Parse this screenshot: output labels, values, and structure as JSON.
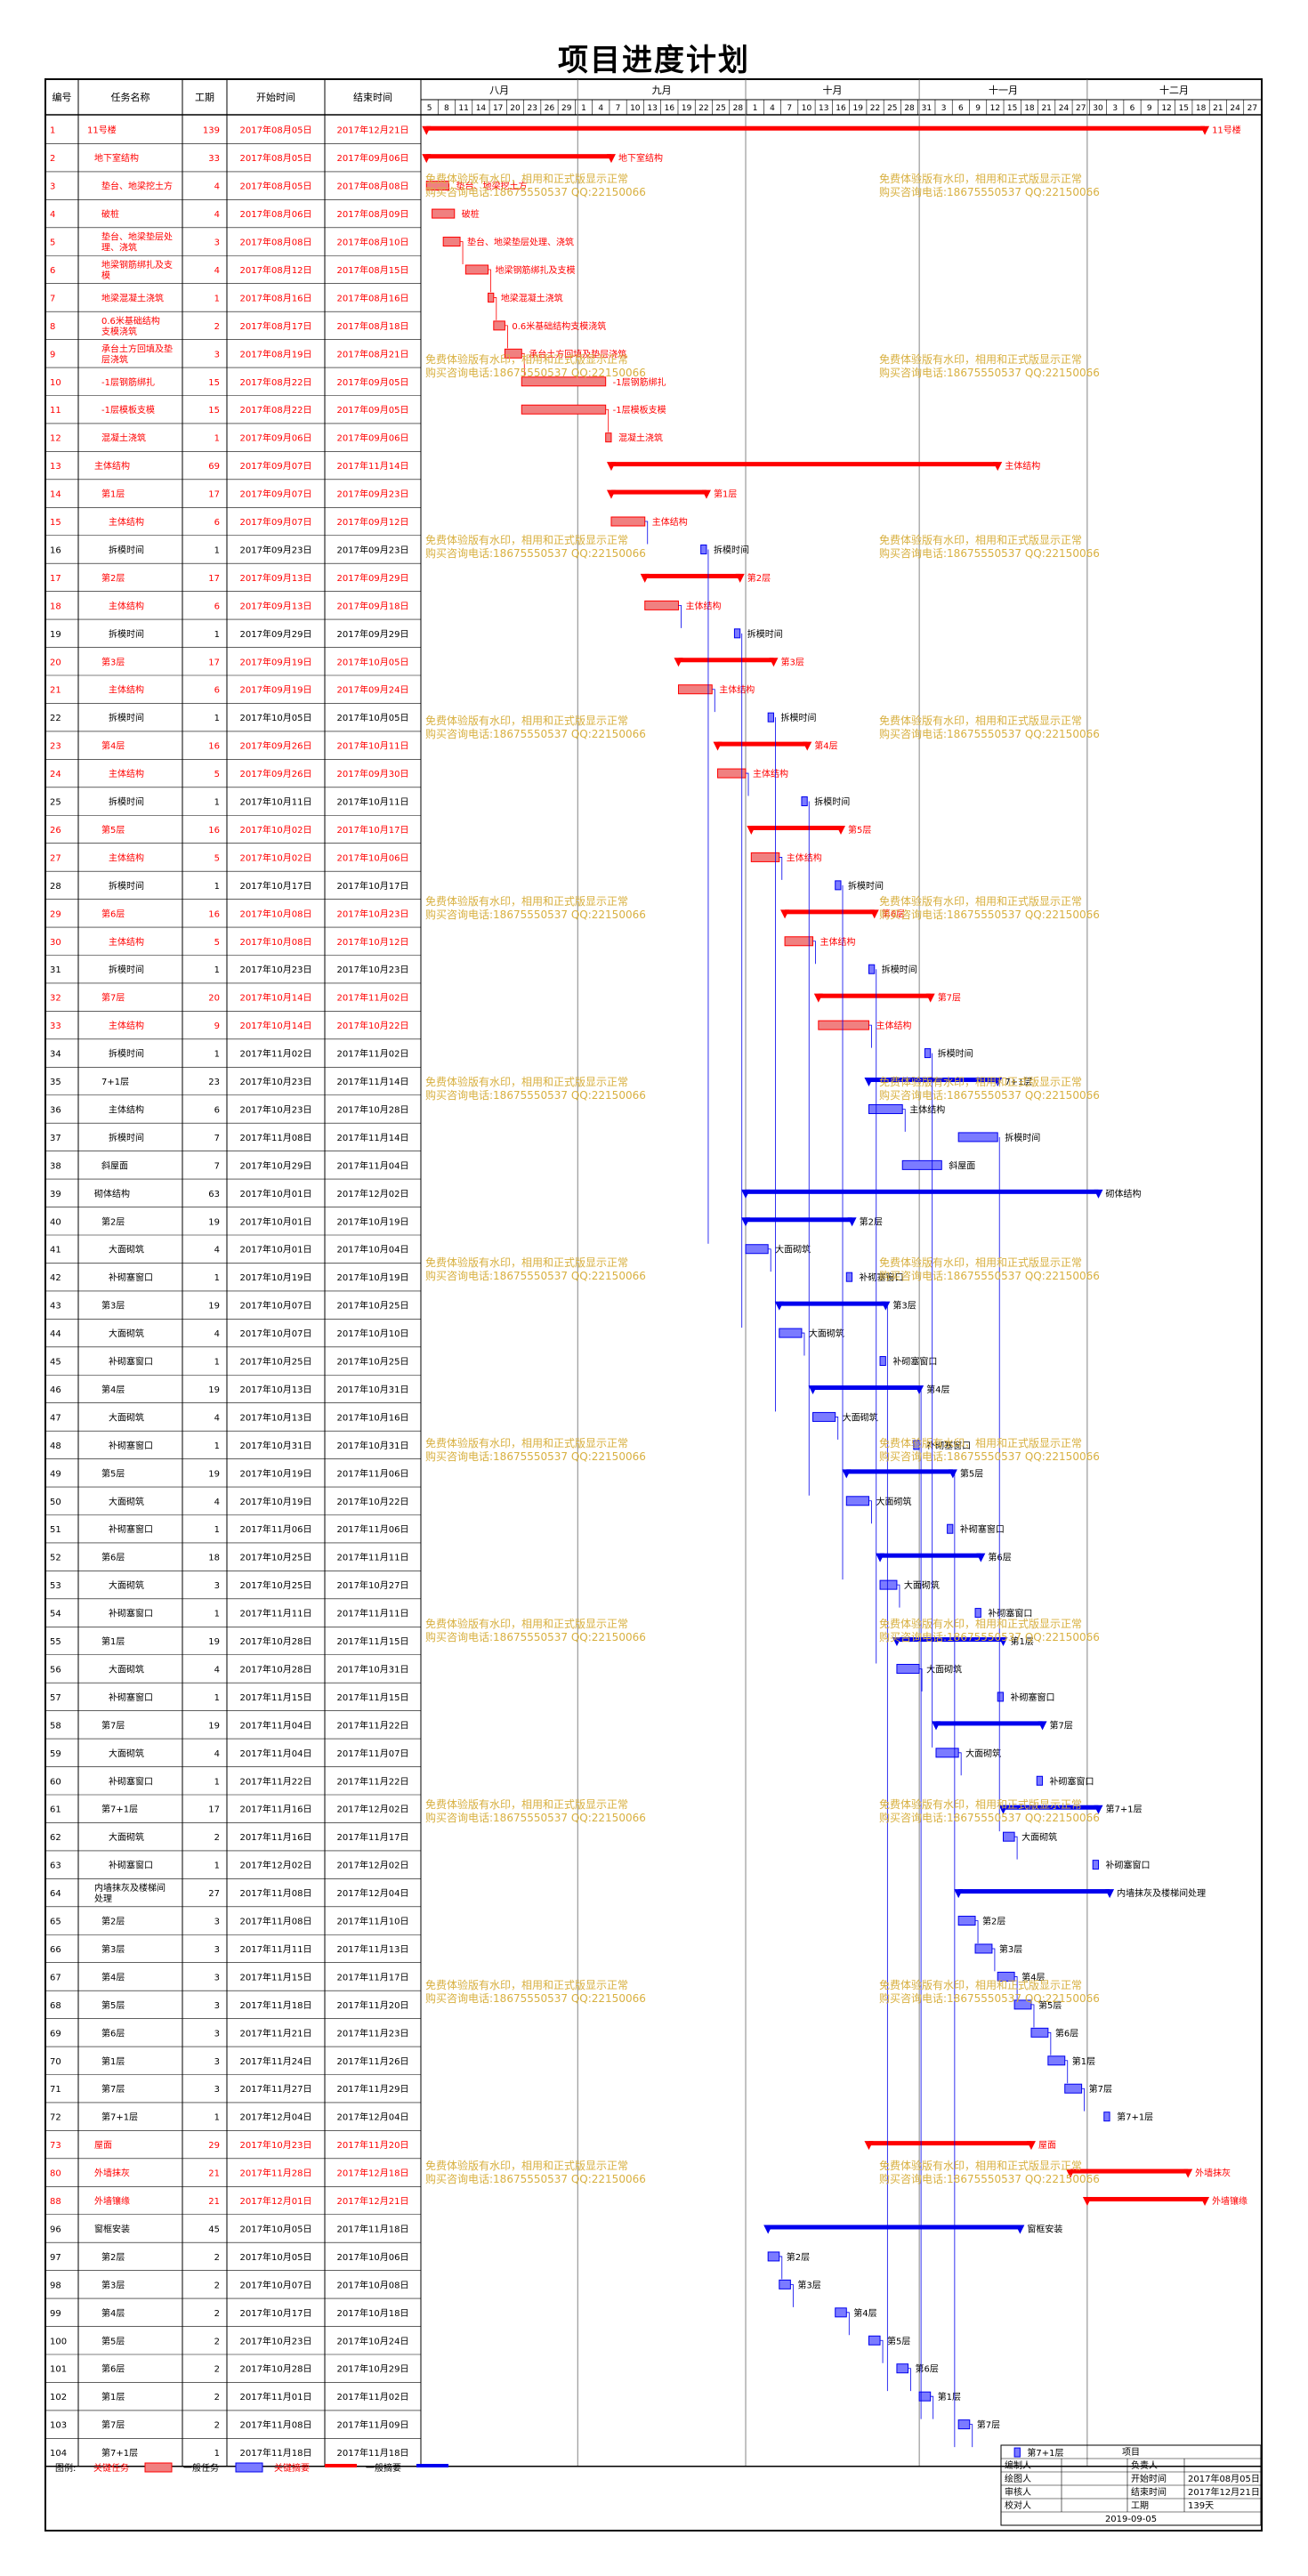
{
  "title": "项目进度计划",
  "headers": {
    "id": "编号",
    "name": "任务名称",
    "dur": "工期",
    "start": "开始时间",
    "end": "结束时间"
  },
  "months": [
    "八月",
    "九月",
    "十月",
    "十一月",
    "十二月"
  ],
  "days": [
    "5",
    "8",
    "11",
    "14",
    "17",
    "20",
    "23",
    "26",
    "29",
    "1",
    "4",
    "7",
    "10",
    "13",
    "16",
    "19",
    "22",
    "25",
    "28",
    "1",
    "4",
    "7",
    "10",
    "13",
    "16",
    "19",
    "22",
    "25",
    "28",
    "31",
    "3",
    "6",
    "9",
    "12",
    "15",
    "18",
    "21",
    "24",
    "27",
    "30",
    "3",
    "6",
    "9",
    "12",
    "15",
    "18",
    "21",
    "24",
    "27"
  ],
  "colors": {
    "critical": "#ff0000",
    "critical_fill": "#f08080",
    "normal": "#0000ee",
    "normal_fill": "#7b7bff",
    "watermark": "#d8b040"
  },
  "watermark": [
    "免费体验版有水印，相用和正式版显示正常",
    "购买咨询电话:18675550537 QQ:22150066"
  ],
  "legend": {
    "label": "图例:",
    "critical": "关键任务",
    "normal": "一般任务",
    "critical_summary": "关键摘要",
    "normal_summary": "一般摘要"
  },
  "info": {
    "project_label": "项目",
    "rows": [
      [
        "编制人",
        "",
        "负责人",
        ""
      ],
      [
        "绘图人",
        "",
        "开始时间",
        "2017年08月05日"
      ],
      [
        "审核人",
        "",
        "结束时间",
        "2017年12月21日"
      ],
      [
        "校对人",
        "",
        "工期",
        "139天"
      ]
    ],
    "date": "2019-09-05"
  },
  "tasks": [
    {
      "id": "1",
      "name": "11号楼",
      "dur": "139",
      "start": "2017年08月05日",
      "end": "2017年12月21日",
      "crit": true,
      "sum": true,
      "lvl": 0
    },
    {
      "id": "2",
      "name": "地下室结构",
      "dur": "33",
      "start": "2017年08月05日",
      "end": "2017年09月06日",
      "crit": true,
      "sum": true,
      "lvl": 1
    },
    {
      "id": "3",
      "name": "垫台、地梁挖土方",
      "dur": "4",
      "start": "2017年08月05日",
      "end": "2017年08月08日",
      "crit": true,
      "lvl": 2
    },
    {
      "id": "4",
      "name": "破桩",
      "dur": "4",
      "start": "2017年08月06日",
      "end": "2017年08月09日",
      "crit": true,
      "lvl": 2
    },
    {
      "id": "5",
      "name": "垫台、地梁垫层处理、浇筑",
      "dur": "3",
      "start": "2017年08月08日",
      "end": "2017年08月10日",
      "crit": true,
      "lvl": 2
    },
    {
      "id": "6",
      "name": "地梁钢筋绑扎及支模",
      "dur": "4",
      "start": "2017年08月12日",
      "end": "2017年08月15日",
      "crit": true,
      "lvl": 2
    },
    {
      "id": "7",
      "name": "地梁混凝土浇筑",
      "dur": "1",
      "start": "2017年08月16日",
      "end": "2017年08月16日",
      "crit": true,
      "lvl": 2
    },
    {
      "id": "8",
      "name": "0.6米基础结构支模浇筑",
      "dur": "2",
      "start": "2017年08月17日",
      "end": "2017年08月18日",
      "crit": true,
      "lvl": 2
    },
    {
      "id": "9",
      "name": "承台土方回填及垫层浇筑",
      "dur": "3",
      "start": "2017年08月19日",
      "end": "2017年08月21日",
      "crit": true,
      "lvl": 2
    },
    {
      "id": "10",
      "name": "-1层钢筋绑扎",
      "dur": "15",
      "start": "2017年08月22日",
      "end": "2017年09月05日",
      "crit": true,
      "lvl": 2
    },
    {
      "id": "11",
      "name": "-1层模板支模",
      "dur": "15",
      "start": "2017年08月22日",
      "end": "2017年09月05日",
      "crit": true,
      "lvl": 2
    },
    {
      "id": "12",
      "name": "混凝土浇筑",
      "dur": "1",
      "start": "2017年09月06日",
      "end": "2017年09月06日",
      "crit": true,
      "lvl": 2
    },
    {
      "id": "13",
      "name": "主体结构",
      "dur": "69",
      "start": "2017年09月07日",
      "end": "2017年11月14日",
      "crit": true,
      "sum": true,
      "lvl": 1
    },
    {
      "id": "14",
      "name": "第1层",
      "dur": "17",
      "start": "2017年09月07日",
      "end": "2017年09月23日",
      "crit": true,
      "sum": true,
      "lvl": 2
    },
    {
      "id": "15",
      "name": "主体结构",
      "dur": "6",
      "start": "2017年09月07日",
      "end": "2017年09月12日",
      "crit": true,
      "lvl": 3
    },
    {
      "id": "16",
      "name": "拆模时间",
      "dur": "1",
      "start": "2017年09月23日",
      "end": "2017年09月23日",
      "crit": false,
      "lvl": 3
    },
    {
      "id": "17",
      "name": "第2层",
      "dur": "17",
      "start": "2017年09月13日",
      "end": "2017年09月29日",
      "crit": true,
      "sum": true,
      "lvl": 2
    },
    {
      "id": "18",
      "name": "主体结构",
      "dur": "6",
      "start": "2017年09月13日",
      "end": "2017年09月18日",
      "crit": true,
      "lvl": 3
    },
    {
      "id": "19",
      "name": "拆模时间",
      "dur": "1",
      "start": "2017年09月29日",
      "end": "2017年09月29日",
      "crit": false,
      "lvl": 3
    },
    {
      "id": "20",
      "name": "第3层",
      "dur": "17",
      "start": "2017年09月19日",
      "end": "2017年10月05日",
      "crit": true,
      "sum": true,
      "lvl": 2
    },
    {
      "id": "21",
      "name": "主体结构",
      "dur": "6",
      "start": "2017年09月19日",
      "end": "2017年09月24日",
      "crit": true,
      "lvl": 3
    },
    {
      "id": "22",
      "name": "拆模时间",
      "dur": "1",
      "start": "2017年10月05日",
      "end": "2017年10月05日",
      "crit": false,
      "lvl": 3
    },
    {
      "id": "23",
      "name": "第4层",
      "dur": "16",
      "start": "2017年09月26日",
      "end": "2017年10月11日",
      "crit": true,
      "sum": true,
      "lvl": 2
    },
    {
      "id": "24",
      "name": "主体结构",
      "dur": "5",
      "start": "2017年09月26日",
      "end": "2017年09月30日",
      "crit": true,
      "lvl": 3
    },
    {
      "id": "25",
      "name": "拆模时间",
      "dur": "1",
      "start": "2017年10月11日",
      "end": "2017年10月11日",
      "crit": false,
      "lvl": 3
    },
    {
      "id": "26",
      "name": "第5层",
      "dur": "16",
      "start": "2017年10月02日",
      "end": "2017年10月17日",
      "crit": true,
      "sum": true,
      "lvl": 2
    },
    {
      "id": "27",
      "name": "主体结构",
      "dur": "5",
      "start": "2017年10月02日",
      "end": "2017年10月06日",
      "crit": true,
      "lvl": 3
    },
    {
      "id": "28",
      "name": "拆模时间",
      "dur": "1",
      "start": "2017年10月17日",
      "end": "2017年10月17日",
      "crit": false,
      "lvl": 3
    },
    {
      "id": "29",
      "name": "第6层",
      "dur": "16",
      "start": "2017年10月08日",
      "end": "2017年10月23日",
      "crit": true,
      "sum": true,
      "lvl": 2
    },
    {
      "id": "30",
      "name": "主体结构",
      "dur": "5",
      "start": "2017年10月08日",
      "end": "2017年10月12日",
      "crit": true,
      "lvl": 3
    },
    {
      "id": "31",
      "name": "拆模时间",
      "dur": "1",
      "start": "2017年10月23日",
      "end": "2017年10月23日",
      "crit": false,
      "lvl": 3
    },
    {
      "id": "32",
      "name": "第7层",
      "dur": "20",
      "start": "2017年10月14日",
      "end": "2017年11月02日",
      "crit": true,
      "sum": true,
      "lvl": 2
    },
    {
      "id": "33",
      "name": "主体结构",
      "dur": "9",
      "start": "2017年10月14日",
      "end": "2017年10月22日",
      "crit": true,
      "lvl": 3
    },
    {
      "id": "34",
      "name": "拆模时间",
      "dur": "1",
      "start": "2017年11月02日",
      "end": "2017年11月02日",
      "crit": false,
      "lvl": 3
    },
    {
      "id": "35",
      "name": "7+1层",
      "dur": "23",
      "start": "2017年10月23日",
      "end": "2017年11月14日",
      "crit": false,
      "sum": true,
      "lvl": 2
    },
    {
      "id": "36",
      "name": "主体结构",
      "dur": "6",
      "start": "2017年10月23日",
      "end": "2017年10月28日",
      "crit": false,
      "lvl": 3
    },
    {
      "id": "37",
      "name": "拆模时间",
      "dur": "7",
      "start": "2017年11月08日",
      "end": "2017年11月14日",
      "crit": false,
      "lvl": 3
    },
    {
      "id": "38",
      "name": "斜屋面",
      "dur": "7",
      "start": "2017年10月29日",
      "end": "2017年11月04日",
      "crit": false,
      "lvl": 2
    },
    {
      "id": "39",
      "name": "砌体结构",
      "dur": "63",
      "start": "2017年10月01日",
      "end": "2017年12月02日",
      "crit": false,
      "sum": true,
      "lvl": 1
    },
    {
      "id": "40",
      "name": "第2层",
      "dur": "19",
      "start": "2017年10月01日",
      "end": "2017年10月19日",
      "crit": false,
      "sum": true,
      "lvl": 2
    },
    {
      "id": "41",
      "name": "大面砌筑",
      "dur": "4",
      "start": "2017年10月01日",
      "end": "2017年10月04日",
      "crit": false,
      "lvl": 3
    },
    {
      "id": "42",
      "name": "补砌塞窗口",
      "dur": "1",
      "start": "2017年10月19日",
      "end": "2017年10月19日",
      "crit": false,
      "lvl": 3
    },
    {
      "id": "43",
      "name": "第3层",
      "dur": "19",
      "start": "2017年10月07日",
      "end": "2017年10月25日",
      "crit": false,
      "sum": true,
      "lvl": 2
    },
    {
      "id": "44",
      "name": "大面砌筑",
      "dur": "4",
      "start": "2017年10月07日",
      "end": "2017年10月10日",
      "crit": false,
      "lvl": 3
    },
    {
      "id": "45",
      "name": "补砌塞窗口",
      "dur": "1",
      "start": "2017年10月25日",
      "end": "2017年10月25日",
      "crit": false,
      "lvl": 3
    },
    {
      "id": "46",
      "name": "第4层",
      "dur": "19",
      "start": "2017年10月13日",
      "end": "2017年10月31日",
      "crit": false,
      "sum": true,
      "lvl": 2
    },
    {
      "id": "47",
      "name": "大面砌筑",
      "dur": "4",
      "start": "2017年10月13日",
      "end": "2017年10月16日",
      "crit": false,
      "lvl": 3
    },
    {
      "id": "48",
      "name": "补砌塞窗口",
      "dur": "1",
      "start": "2017年10月31日",
      "end": "2017年10月31日",
      "crit": false,
      "lvl": 3
    },
    {
      "id": "49",
      "name": "第5层",
      "dur": "19",
      "start": "2017年10月19日",
      "end": "2017年11月06日",
      "crit": false,
      "sum": true,
      "lvl": 2
    },
    {
      "id": "50",
      "name": "大面砌筑",
      "dur": "4",
      "start": "2017年10月19日",
      "end": "2017年10月22日",
      "crit": false,
      "lvl": 3
    },
    {
      "id": "51",
      "name": "补砌塞窗口",
      "dur": "1",
      "start": "2017年11月06日",
      "end": "2017年11月06日",
      "crit": false,
      "lvl": 3
    },
    {
      "id": "52",
      "name": "第6层",
      "dur": "18",
      "start": "2017年10月25日",
      "end": "2017年11月11日",
      "crit": false,
      "sum": true,
      "lvl": 2
    },
    {
      "id": "53",
      "name": "大面砌筑",
      "dur": "3",
      "start": "2017年10月25日",
      "end": "2017年10月27日",
      "crit": false,
      "lvl": 3
    },
    {
      "id": "54",
      "name": "补砌塞窗口",
      "dur": "1",
      "start": "2017年11月11日",
      "end": "2017年11月11日",
      "crit": false,
      "lvl": 3
    },
    {
      "id": "55",
      "name": "第1层",
      "dur": "19",
      "start": "2017年10月28日",
      "end": "2017年11月15日",
      "crit": false,
      "sum": true,
      "lvl": 2
    },
    {
      "id": "56",
      "name": "大面砌筑",
      "dur": "4",
      "start": "2017年10月28日",
      "end": "2017年10月31日",
      "crit": false,
      "lvl": 3
    },
    {
      "id": "57",
      "name": "补砌塞窗口",
      "dur": "1",
      "start": "2017年11月15日",
      "end": "2017年11月15日",
      "crit": false,
      "lvl": 3
    },
    {
      "id": "58",
      "name": "第7层",
      "dur": "19",
      "start": "2017年11月04日",
      "end": "2017年11月22日",
      "crit": false,
      "sum": true,
      "lvl": 2
    },
    {
      "id": "59",
      "name": "大面砌筑",
      "dur": "4",
      "start": "2017年11月04日",
      "end": "2017年11月07日",
      "crit": false,
      "lvl": 3
    },
    {
      "id": "60",
      "name": "补砌塞窗口",
      "dur": "1",
      "start": "2017年11月22日",
      "end": "2017年11月22日",
      "crit": false,
      "lvl": 3
    },
    {
      "id": "61",
      "name": "第7+1层",
      "dur": "17",
      "start": "2017年11月16日",
      "end": "2017年12月02日",
      "crit": false,
      "sum": true,
      "lvl": 2
    },
    {
      "id": "62",
      "name": "大面砌筑",
      "dur": "2",
      "start": "2017年11月16日",
      "end": "2017年11月17日",
      "crit": false,
      "lvl": 3
    },
    {
      "id": "63",
      "name": "补砌塞窗口",
      "dur": "1",
      "start": "2017年12月02日",
      "end": "2017年12月02日",
      "crit": false,
      "lvl": 3
    },
    {
      "id": "64",
      "name": "内墙抹灰及楼梯间处理",
      "dur": "27",
      "start": "2017年11月08日",
      "end": "2017年12月04日",
      "crit": false,
      "sum": true,
      "lvl": 1
    },
    {
      "id": "65",
      "name": "第2层",
      "dur": "3",
      "start": "2017年11月08日",
      "end": "2017年11月10日",
      "crit": false,
      "lvl": 2
    },
    {
      "id": "66",
      "name": "第3层",
      "dur": "3",
      "start": "2017年11月11日",
      "end": "2017年11月13日",
      "crit": false,
      "lvl": 2
    },
    {
      "id": "67",
      "name": "第4层",
      "dur": "3",
      "start": "2017年11月15日",
      "end": "2017年11月17日",
      "crit": false,
      "lvl": 2
    },
    {
      "id": "68",
      "name": "第5层",
      "dur": "3",
      "start": "2017年11月18日",
      "end": "2017年11月20日",
      "crit": false,
      "lvl": 2
    },
    {
      "id": "69",
      "name": "第6层",
      "dur": "3",
      "start": "2017年11月21日",
      "end": "2017年11月23日",
      "crit": false,
      "lvl": 2
    },
    {
      "id": "70",
      "name": "第1层",
      "dur": "3",
      "start": "2017年11月24日",
      "end": "2017年11月26日",
      "crit": false,
      "lvl": 2
    },
    {
      "id": "71",
      "name": "第7层",
      "dur": "3",
      "start": "2017年11月27日",
      "end": "2017年11月29日",
      "crit": false,
      "lvl": 2
    },
    {
      "id": "72",
      "name": "第7+1层",
      "dur": "1",
      "start": "2017年12月04日",
      "end": "2017年12月04日",
      "crit": false,
      "lvl": 2
    },
    {
      "id": "73",
      "name": "屋面",
      "dur": "29",
      "start": "2017年10月23日",
      "end": "2017年11月20日",
      "crit": true,
      "sum": true,
      "lvl": 1
    },
    {
      "id": "80",
      "name": "外墙抹灰",
      "dur": "21",
      "start": "2017年11月28日",
      "end": "2017年12月18日",
      "crit": true,
      "sum": true,
      "lvl": 1
    },
    {
      "id": "88",
      "name": "外墙镶缘",
      "dur": "21",
      "start": "2017年12月01日",
      "end": "2017年12月21日",
      "crit": true,
      "sum": true,
      "lvl": 1
    },
    {
      "id": "96",
      "name": "窗框安装",
      "dur": "45",
      "start": "2017年10月05日",
      "end": "2017年11月18日",
      "crit": false,
      "sum": true,
      "lvl": 1
    },
    {
      "id": "97",
      "name": "第2层",
      "dur": "2",
      "start": "2017年10月05日",
      "end": "2017年10月06日",
      "crit": false,
      "lvl": 2
    },
    {
      "id": "98",
      "name": "第3层",
      "dur": "2",
      "start": "2017年10月07日",
      "end": "2017年10月08日",
      "crit": false,
      "lvl": 2
    },
    {
      "id": "99",
      "name": "第4层",
      "dur": "2",
      "start": "2017年10月17日",
      "end": "2017年10月18日",
      "crit": false,
      "lvl": 2
    },
    {
      "id": "100",
      "name": "第5层",
      "dur": "2",
      "start": "2017年10月23日",
      "end": "2017年10月24日",
      "crit": false,
      "lvl": 2
    },
    {
      "id": "101",
      "name": "第6层",
      "dur": "2",
      "start": "2017年10月28日",
      "end": "2017年10月29日",
      "crit": false,
      "lvl": 2
    },
    {
      "id": "102",
      "name": "第1层",
      "dur": "2",
      "start": "2017年11月01日",
      "end": "2017年11月02日",
      "crit": false,
      "lvl": 2
    },
    {
      "id": "103",
      "name": "第7层",
      "dur": "2",
      "start": "2017年11月08日",
      "end": "2017年11月09日",
      "crit": false,
      "lvl": 2
    },
    {
      "id": "104",
      "name": "第7+1层",
      "dur": "1",
      "start": "2017年11月18日",
      "end": "2017年11月18日",
      "crit": false,
      "lvl": 2
    }
  ]
}
